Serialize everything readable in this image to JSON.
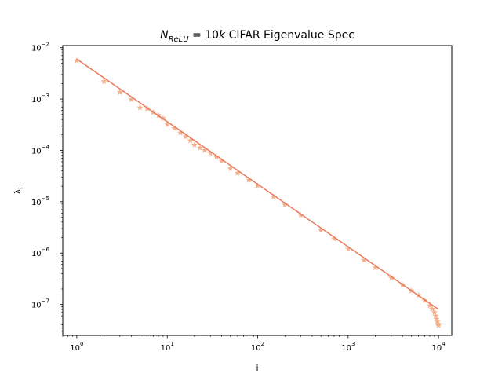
{
  "chart_data": {
    "type": "scatter",
    "title": {
      "math_symbol": "N",
      "math_subscript": "ReLU",
      "math_equals": " = 10",
      "math_k": "k",
      "text": " CIFAR Eigenvalue Spec"
    },
    "xlabel": "i",
    "ylabel": {
      "symbol": "λ",
      "subscript": "i"
    },
    "xscale": "log",
    "yscale": "log",
    "xlim": [
      0.7,
      14000
    ],
    "ylim": [
      2.5e-08,
      0.011
    ],
    "grid": false,
    "legend": "none",
    "x_ticks": [
      {
        "value": 1,
        "base": "10",
        "exp": "0"
      },
      {
        "value": 10,
        "base": "10",
        "exp": "1"
      },
      {
        "value": 100,
        "base": "10",
        "exp": "2"
      },
      {
        "value": 1000,
        "base": "10",
        "exp": "3"
      },
      {
        "value": 10000,
        "base": "10",
        "exp": "4"
      }
    ],
    "y_ticks": [
      {
        "value": 1e-07,
        "base": "10",
        "exp": "−7"
      },
      {
        "value": 1e-06,
        "base": "10",
        "exp": "−6"
      },
      {
        "value": 1e-05,
        "base": "10",
        "exp": "−5"
      },
      {
        "value": 0.0001,
        "base": "10",
        "exp": "−4"
      },
      {
        "value": 0.001,
        "base": "10",
        "exp": "−3"
      },
      {
        "value": 0.01,
        "base": "10",
        "exp": "−2"
      }
    ],
    "series": [
      {
        "kind": "scatter",
        "marker": "star",
        "color": "#f4b08a",
        "x": [
          1,
          2,
          3,
          4,
          5,
          6,
          7,
          8,
          9,
          10,
          12,
          14,
          16,
          18,
          20,
          23,
          26,
          30,
          35,
          40,
          50,
          60,
          80,
          100,
          150,
          200,
          300,
          500,
          700,
          1000,
          1500,
          2000,
          3000,
          4000,
          5000,
          6000,
          7000,
          8000,
          8500,
          9000,
          9300,
          9500,
          9700,
          9850,
          10000
        ],
        "y": [
          0.0056,
          0.0022,
          0.00135,
          0.00098,
          0.00068,
          0.00065,
          0.00055,
          0.00048,
          0.00042,
          0.00032,
          0.00027,
          0.00022,
          0.000185,
          0.000155,
          0.000128,
          0.000112,
          0.0001,
          8.8e-05,
          7.5e-05,
          6.2e-05,
          4.45e-05,
          3.6e-05,
          2.65e-05,
          2.05e-05,
          1.25e-05,
          8.8e-06,
          5.5e-06,
          2.8e-06,
          1.9e-06,
          1.2e-06,
          7.3e-07,
          5.2e-07,
          3.3e-07,
          2.4e-07,
          1.85e-07,
          1.5e-07,
          1.2e-07,
          9.5e-08,
          8.2e-08,
          7e-08,
          6e-08,
          5.2e-08,
          4.6e-08,
          4.2e-08,
          3.9e-08
        ]
      },
      {
        "kind": "line",
        "color": "#ea7a5c",
        "x": [
          1,
          10000
        ],
        "y": [
          0.006,
          8e-08
        ]
      }
    ],
    "colors": {
      "frame": "#000000",
      "background": "#ffffff"
    }
  }
}
